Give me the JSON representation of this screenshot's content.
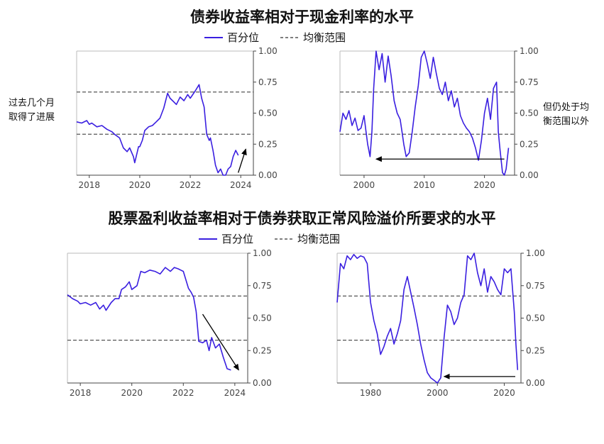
{
  "top_section": {
    "title": "债券收益率相对于现金利率的水平",
    "legend": {
      "line_label": "百分位",
      "band_label": "均衡范围"
    },
    "left_note": [
      "过去几个月",
      "取得了进展"
    ],
    "right_note": [
      "但仍处于均",
      "衡范围以外"
    ]
  },
  "bottom_section": {
    "title": "股票盈利收益率相对于债券获取正常风险溢价所要求的水平",
    "legend": {
      "line_label": "百分位",
      "band_label": "均衡范围"
    }
  },
  "colors": {
    "line": "#3a1fe0",
    "band": "#555555",
    "axis": "#444444",
    "arrow": "#000000"
  },
  "chart_data": [
    {
      "type": "line",
      "id": "bond-recent",
      "xlim": [
        2017.5,
        2024.5
      ],
      "ylim": [
        0,
        1
      ],
      "xticks": [
        "2018",
        "2020",
        "2022",
        "2024"
      ],
      "yticks": [
        "0.00",
        "0.25",
        "0.50",
        "0.75",
        "1.00"
      ],
      "band": [
        0.33,
        0.67
      ],
      "series": [
        {
          "x": [
            2017.5,
            2017.7,
            2017.9,
            2018.0,
            2018.1,
            2018.3,
            2018.5,
            2018.7,
            2018.9,
            2019.0,
            2019.2,
            2019.35,
            2019.5,
            2019.6,
            2019.75,
            2019.8,
            2019.95,
            2020.0,
            2020.1,
            2020.2,
            2020.35,
            2020.5,
            2020.65,
            2020.8,
            2020.95,
            2021.1,
            2021.2,
            2021.3,
            2021.45,
            2021.6,
            2021.75,
            2021.9,
            2022.0,
            2022.2,
            2022.35,
            2022.45,
            2022.55,
            2022.65,
            2022.75,
            2022.8,
            2022.9,
            2023.0,
            2023.1,
            2023.2,
            2023.3,
            2023.4,
            2023.5,
            2023.6,
            2023.7,
            2023.8,
            2023.9
          ],
          "y": [
            0.43,
            0.42,
            0.44,
            0.41,
            0.42,
            0.39,
            0.4,
            0.37,
            0.35,
            0.33,
            0.3,
            0.22,
            0.19,
            0.22,
            0.15,
            0.1,
            0.23,
            0.23,
            0.28,
            0.36,
            0.39,
            0.4,
            0.43,
            0.46,
            0.54,
            0.66,
            0.62,
            0.6,
            0.57,
            0.63,
            0.6,
            0.65,
            0.62,
            0.68,
            0.73,
            0.62,
            0.55,
            0.33,
            0.28,
            0.3,
            0.2,
            0.08,
            0.02,
            0.05,
            0.0,
            0.0,
            0.05,
            0.07,
            0.15,
            0.2,
            0.16
          ]
        }
      ],
      "arrow": {
        "from": [
          2023.9,
          0.02
        ],
        "to": [
          2024.2,
          0.21
        ]
      }
    },
    {
      "type": "line",
      "id": "bond-history",
      "xlim": [
        1996,
        2025
      ],
      "ylim": [
        0,
        1
      ],
      "xticks": [
        "2000",
        "2010",
        "2020"
      ],
      "yticks": [
        "0.00",
        "0.25",
        "0.50",
        "0.75",
        "1.00"
      ],
      "band": [
        0.33,
        0.67
      ],
      "series": [
        {
          "x": [
            1996,
            1996.5,
            1997,
            1997.5,
            1998,
            1998.5,
            1999,
            1999.5,
            2000,
            2000.3,
            2000.6,
            2001,
            2001.3,
            2001.6,
            2002,
            2002.5,
            2003,
            2003.5,
            2004,
            2004.5,
            2005,
            2005.5,
            2006,
            2006.3,
            2006.6,
            2007,
            2007.5,
            2008,
            2008.5,
            2009,
            2009.5,
            2010,
            2010.5,
            2011,
            2011.5,
            2012,
            2012.5,
            2013,
            2013.5,
            2014,
            2014.5,
            2015,
            2015.5,
            2016,
            2016.5,
            2017,
            2017.5,
            2018,
            2018.5,
            2019,
            2019.5,
            2020,
            2020.5,
            2021,
            2021.5,
            2022,
            2022.3,
            2022.6,
            2023,
            2023.3,
            2023.6,
            2024
          ],
          "y": [
            0.35,
            0.5,
            0.45,
            0.52,
            0.4,
            0.46,
            0.36,
            0.38,
            0.48,
            0.36,
            0.25,
            0.15,
            0.35,
            0.7,
            1.0,
            0.85,
            0.98,
            0.75,
            0.96,
            0.8,
            0.6,
            0.5,
            0.45,
            0.35,
            0.25,
            0.15,
            0.18,
            0.35,
            0.55,
            0.72,
            0.95,
            1.0,
            0.9,
            0.78,
            0.95,
            0.82,
            0.7,
            0.65,
            0.75,
            0.6,
            0.68,
            0.55,
            0.62,
            0.48,
            0.42,
            0.38,
            0.35,
            0.3,
            0.22,
            0.12,
            0.28,
            0.5,
            0.62,
            0.45,
            0.7,
            0.75,
            0.35,
            0.2,
            0.02,
            0.0,
            0.05,
            0.22
          ]
        }
      ],
      "arrow": {
        "from": [
          2023.3,
          0.13
        ],
        "to": [
          2002.0,
          0.13
        ]
      }
    },
    {
      "type": "line",
      "id": "equity-recent",
      "xlim": [
        2017.5,
        2024.5
      ],
      "ylim": [
        0,
        1
      ],
      "xticks": [
        "2018",
        "2020",
        "2022",
        "2024"
      ],
      "yticks": [
        "0.00",
        "0.25",
        "0.50",
        "0.75",
        "1.00"
      ],
      "band": [
        0.33,
        0.67
      ],
      "series": [
        {
          "x": [
            2017.5,
            2017.7,
            2017.9,
            2018.0,
            2018.2,
            2018.4,
            2018.6,
            2018.75,
            2018.9,
            2019.0,
            2019.2,
            2019.35,
            2019.5,
            2019.6,
            2019.75,
            2019.9,
            2020.0,
            2020.2,
            2020.35,
            2020.5,
            2020.7,
            2020.9,
            2021.1,
            2021.3,
            2021.5,
            2021.65,
            2021.8,
            2022.0,
            2022.2,
            2022.3,
            2022.4,
            2022.5,
            2022.6,
            2022.75,
            2022.9,
            2023.0,
            2023.1,
            2023.25,
            2023.4,
            2023.55,
            2023.7,
            2023.85
          ],
          "y": [
            0.68,
            0.65,
            0.63,
            0.61,
            0.62,
            0.6,
            0.62,
            0.57,
            0.6,
            0.56,
            0.62,
            0.65,
            0.65,
            0.72,
            0.74,
            0.78,
            0.72,
            0.75,
            0.86,
            0.85,
            0.87,
            0.86,
            0.84,
            0.89,
            0.86,
            0.89,
            0.88,
            0.86,
            0.73,
            0.7,
            0.66,
            0.55,
            0.32,
            0.31,
            0.33,
            0.25,
            0.35,
            0.27,
            0.3,
            0.2,
            0.11,
            0.1
          ]
        }
      ],
      "arrow": {
        "from": [
          2022.75,
          0.53
        ],
        "to": [
          2024.15,
          0.1
        ]
      }
    },
    {
      "type": "line",
      "id": "equity-history",
      "xlim": [
        1970,
        2025
      ],
      "ylim": [
        0,
        1
      ],
      "xticks": [
        "1980",
        "2000",
        "2020"
      ],
      "yticks": [
        "0.00",
        "0.25",
        "0.50",
        "0.75",
        "1.00"
      ],
      "band": [
        0.33,
        0.67
      ],
      "series": [
        {
          "x": [
            1970,
            1971,
            1972,
            1973,
            1974,
            1975,
            1976,
            1977,
            1978,
            1979,
            1980,
            1981,
            1982,
            1983,
            1984,
            1985,
            1986,
            1987,
            1988,
            1989,
            1990,
            1991,
            1992,
            1993,
            1994,
            1995,
            1996,
            1997,
            1998,
            1999,
            2000,
            2001,
            2002,
            2003,
            2004,
            2005,
            2006,
            2007,
            2008,
            2009,
            2010,
            2011,
            2012,
            2013,
            2014,
            2015,
            2016,
            2017,
            2018,
            2019,
            2020,
            2021,
            2022,
            2023,
            2023.5,
            2024
          ],
          "y": [
            0.62,
            0.92,
            0.88,
            0.98,
            0.95,
            0.99,
            0.96,
            0.98,
            0.97,
            0.92,
            0.62,
            0.48,
            0.38,
            0.22,
            0.28,
            0.36,
            0.42,
            0.3,
            0.38,
            0.48,
            0.72,
            0.82,
            0.7,
            0.58,
            0.45,
            0.3,
            0.18,
            0.08,
            0.04,
            0.02,
            0.0,
            0.04,
            0.35,
            0.6,
            0.55,
            0.45,
            0.5,
            0.62,
            0.68,
            0.98,
            0.95,
            1.0,
            0.85,
            0.75,
            0.88,
            0.7,
            0.82,
            0.78,
            0.72,
            0.68,
            0.88,
            0.85,
            0.88,
            0.55,
            0.3,
            0.1
          ]
        }
      ],
      "arrow": {
        "from": [
          2023.3,
          0.05
        ],
        "to": [
          2002.0,
          0.05
        ]
      }
    }
  ]
}
